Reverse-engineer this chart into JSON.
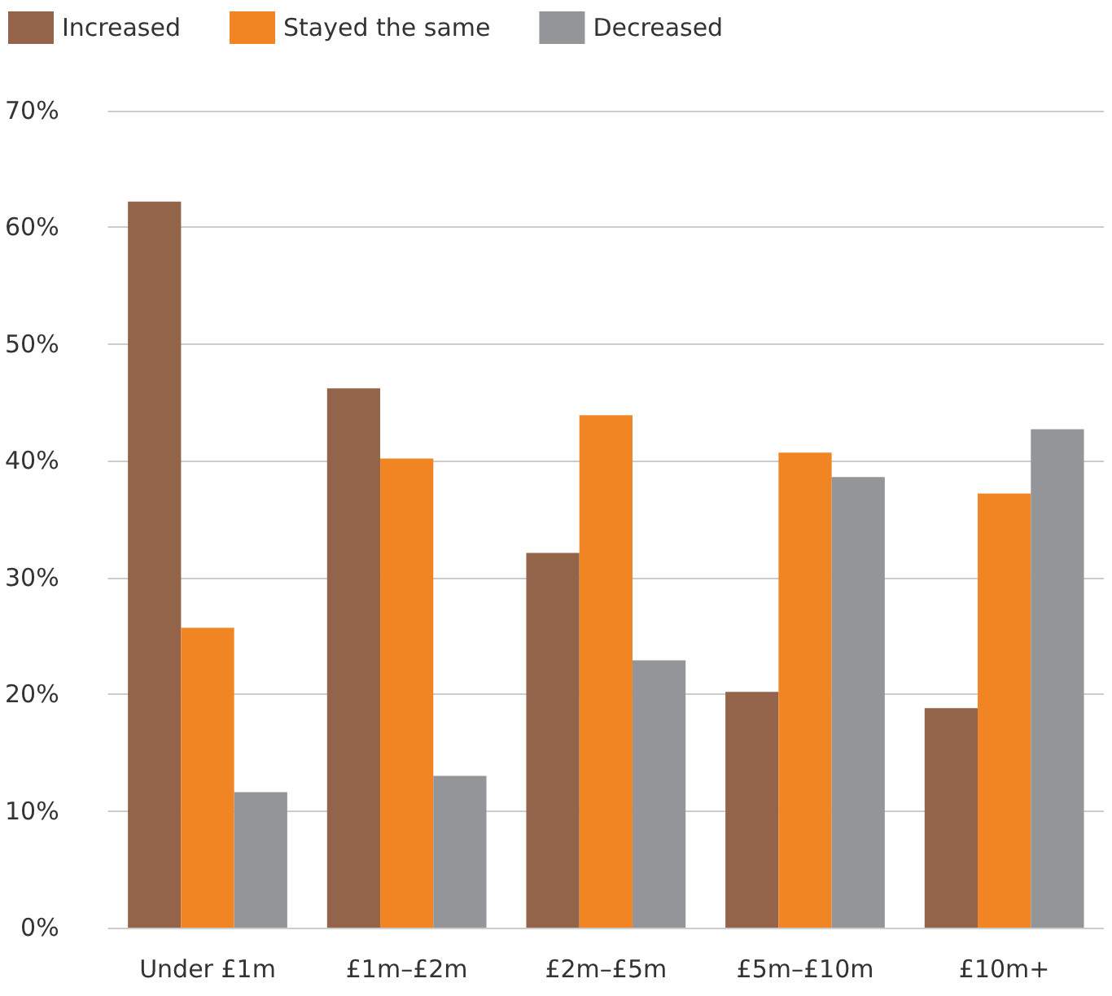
{
  "chart_data": {
    "type": "bar",
    "categories": [
      "Under £1m",
      "£1m–£2m",
      "£2m–£5m",
      "£5m–£10m",
      "£10m+"
    ],
    "series": [
      {
        "name": "Increased",
        "color": "#93634a",
        "values": [
          62.2,
          46.2,
          32.1,
          20.2,
          18.8
        ]
      },
      {
        "name": "Stayed the same",
        "color": "#f18524",
        "values": [
          25.7,
          40.2,
          43.9,
          40.7,
          37.2
        ]
      },
      {
        "name": "Decreased",
        "color": "#939598",
        "values": [
          11.6,
          13.0,
          22.9,
          38.6,
          42.7
        ]
      }
    ],
    "ylim": [
      0,
      70
    ],
    "yticks": [
      {
        "value": 0,
        "label": "0%"
      },
      {
        "value": 10,
        "label": "10%"
      },
      {
        "value": 20,
        "label": "20%"
      },
      {
        "value": 30,
        "label": "30%"
      },
      {
        "value": 40,
        "label": "40%"
      },
      {
        "value": 50,
        "label": "50%"
      },
      {
        "value": 60,
        "label": "60%"
      },
      {
        "value": 70,
        "label": "70%"
      }
    ],
    "grid": "y",
    "legend": "top left"
  }
}
